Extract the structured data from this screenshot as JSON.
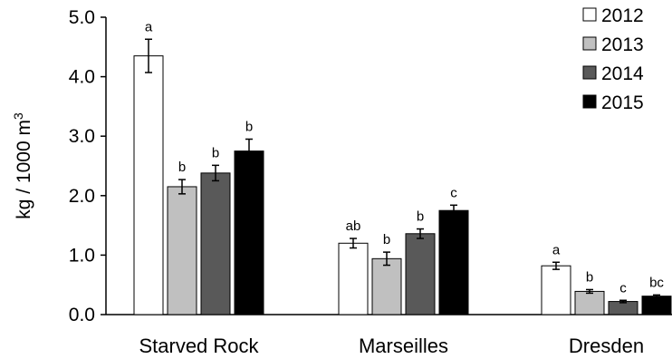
{
  "chart_data": {
    "type": "bar",
    "title": "",
    "xlabel": "",
    "ylabel": "kg / 1000 m",
    "ylabel_superscript": "3",
    "ylim": [
      0,
      5.0
    ],
    "yticks": [
      "0.0",
      "1.0",
      "2.0",
      "3.0",
      "4.0",
      "5.0"
    ],
    "grid": false,
    "legend_position": "top-right",
    "categories": [
      "Starved Rock",
      "Marseilles",
      "Dresden"
    ],
    "series": [
      {
        "name": "2012",
        "color": "#ffffff",
        "values": [
          4.35,
          1.2,
          0.82
        ],
        "errors": [
          0.28,
          0.08,
          0.06
        ],
        "labels": [
          "a",
          "ab",
          "a"
        ]
      },
      {
        "name": "2013",
        "color": "#c0c0c0",
        "values": [
          2.15,
          0.94,
          0.39
        ],
        "errors": [
          0.12,
          0.11,
          0.03
        ],
        "labels": [
          "b",
          "b",
          "b"
        ]
      },
      {
        "name": "2014",
        "color": "#595959",
        "values": [
          2.38,
          1.36,
          0.22
        ],
        "errors": [
          0.13,
          0.08,
          0.02
        ],
        "labels": [
          "b",
          "b",
          "c"
        ]
      },
      {
        "name": "2015",
        "color": "#000000",
        "values": [
          2.75,
          1.75,
          0.31
        ],
        "errors": [
          0.2,
          0.09,
          0.02
        ],
        "labels": [
          "b",
          "c",
          "bc"
        ]
      }
    ]
  }
}
